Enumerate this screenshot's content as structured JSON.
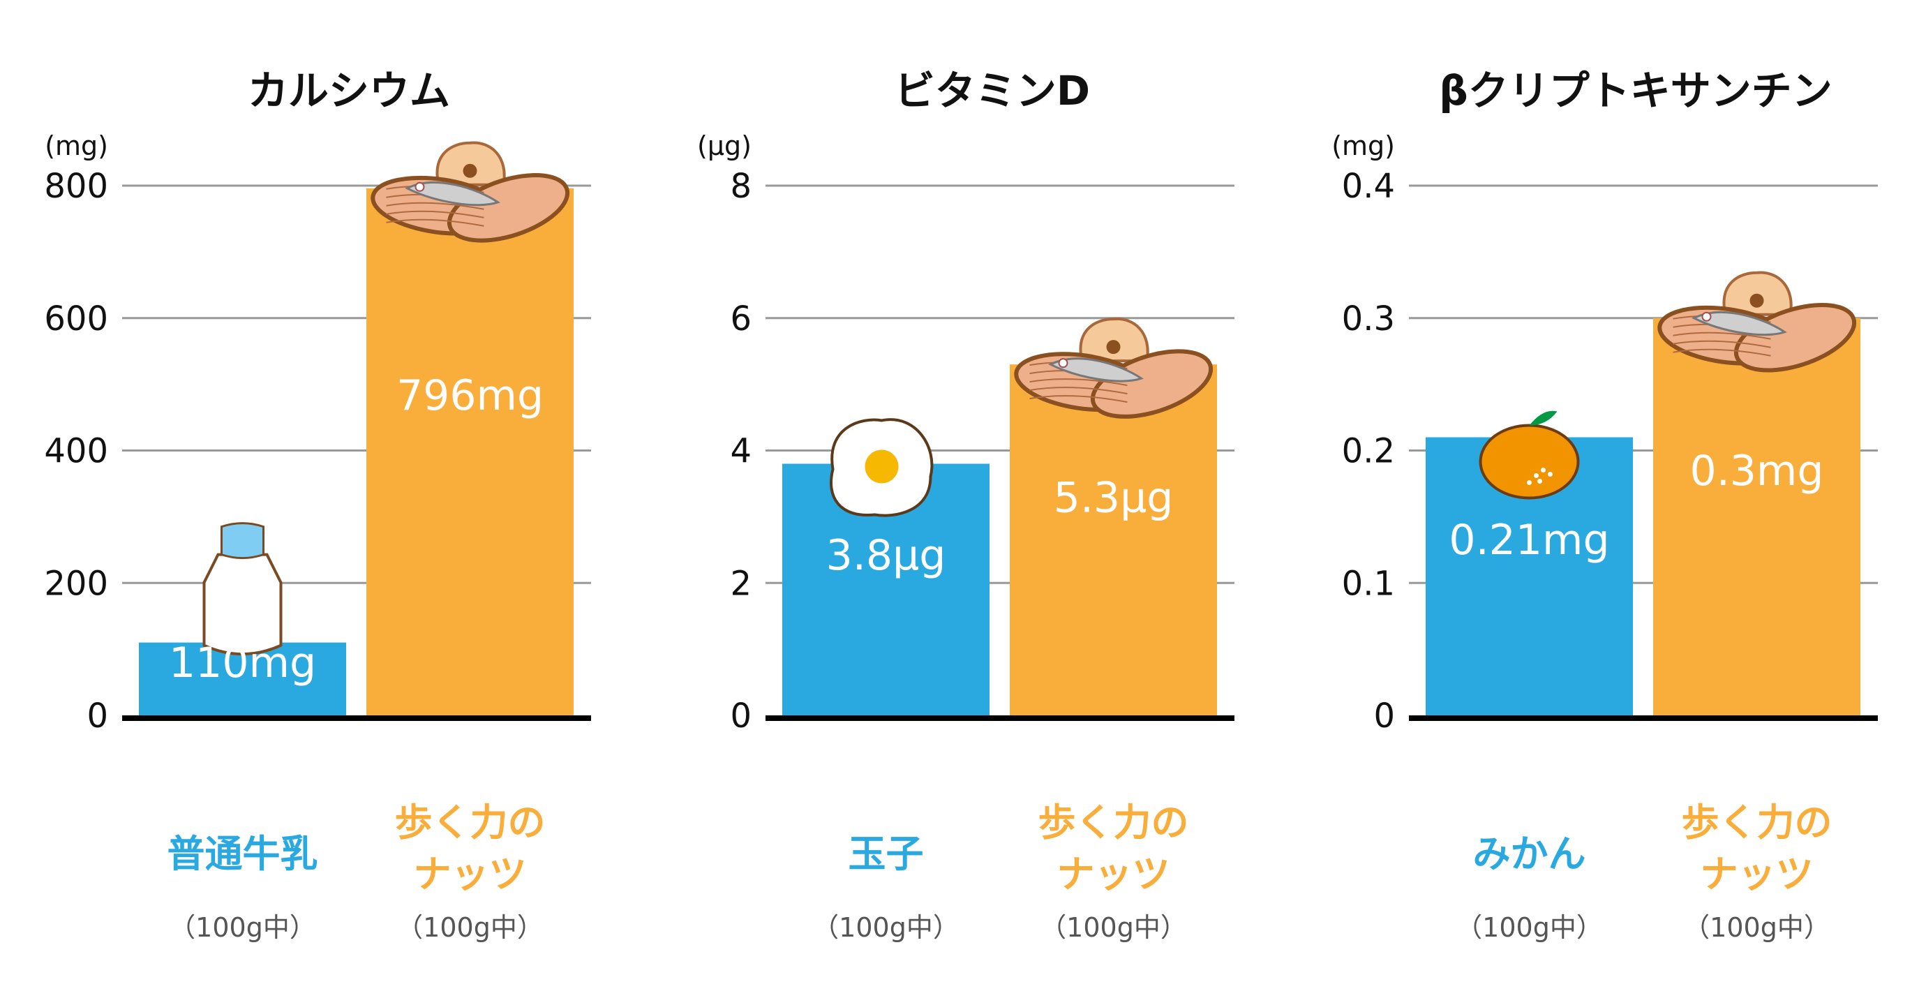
{
  "colors": {
    "milk_blue": "#29a9e0",
    "nuts_orange": "#f9ae3b",
    "grid": "#999999",
    "axis": "#000000"
  },
  "chart_data": [
    {
      "type": "bar",
      "title": "カルシウム",
      "unit": "(mg)",
      "ylim": [
        0,
        800
      ],
      "yticks": [
        "0",
        "200",
        "400",
        "600",
        "800"
      ],
      "ytick_values": [
        0,
        200,
        400,
        600,
        800
      ],
      "grid": true,
      "categories": [
        {
          "label_lines": [
            "普通牛乳"
          ],
          "sub": "（100g中）",
          "color": "#29a9e0",
          "icon": "milk-bottle-icon"
        },
        {
          "label_lines": [
            "歩く力の",
            "ナッツ"
          ],
          "sub": "（100g中）",
          "color": "#f9ae3b",
          "icon": "nuts-and-fish-icon"
        }
      ],
      "values": [
        110,
        796
      ],
      "value_labels": [
        "110mg",
        "796mg"
      ]
    },
    {
      "type": "bar",
      "title": "ビタミンD",
      "unit": "(μg)",
      "ylim": [
        0,
        8
      ],
      "yticks": [
        "0",
        "2",
        "4",
        "6",
        "8"
      ],
      "ytick_values": [
        0,
        2,
        4,
        6,
        8
      ],
      "grid": true,
      "categories": [
        {
          "label_lines": [
            "玉子"
          ],
          "sub": "（100g中）",
          "color": "#29a9e0",
          "icon": "fried-egg-icon"
        },
        {
          "label_lines": [
            "歩く力の",
            "ナッツ"
          ],
          "sub": "（100g中）",
          "color": "#f9ae3b",
          "icon": "nuts-and-fish-icon"
        }
      ],
      "values": [
        3.8,
        5.3
      ],
      "value_labels": [
        "3.8μg",
        "5.3μg"
      ]
    },
    {
      "type": "bar",
      "title": "βクリプトキサンチン",
      "unit": "(mg)",
      "ylim": [
        0,
        0.4
      ],
      "yticks": [
        "0",
        "0.1",
        "0.2",
        "0.3",
        "0.4"
      ],
      "ytick_values": [
        0,
        0.1,
        0.2,
        0.3,
        0.4
      ],
      "grid": true,
      "categories": [
        {
          "label_lines": [
            "みかん"
          ],
          "sub": "（100g中）",
          "color": "#29a9e0",
          "icon": "mandarin-orange-icon"
        },
        {
          "label_lines": [
            "歩く力の",
            "ナッツ"
          ],
          "sub": "（100g中）",
          "color": "#f9ae3b",
          "icon": "nuts-and-fish-icon"
        }
      ],
      "values": [
        0.21,
        0.3
      ],
      "value_labels": [
        "0.21mg",
        "0.3mg"
      ]
    }
  ]
}
